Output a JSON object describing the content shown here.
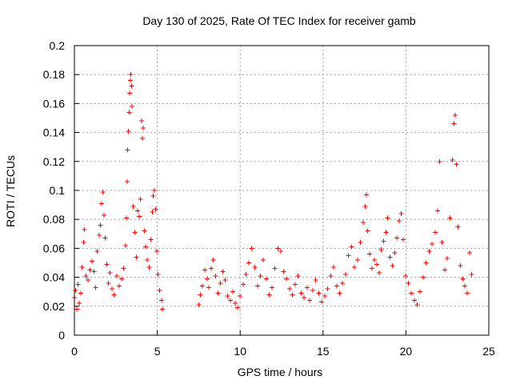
{
  "chart_data": {
    "type": "scatter",
    "title": "Day 130 of 2025, Rate Of TEC Index for receiver gamb",
    "xlabel": "GPS time / hours",
    "ylabel": "ROTI / TECUs",
    "xlim": [
      0,
      25
    ],
    "ylim": [
      0,
      0.2
    ],
    "x_ticks": [
      0,
      5,
      10,
      15,
      20,
      25
    ],
    "y_ticks": [
      0,
      0.02,
      0.04,
      0.06,
      0.08,
      0.1,
      0.12,
      0.14,
      0.16,
      0.18,
      0.2
    ],
    "grid": true,
    "marker": "plus",
    "color": "#ff0000",
    "series": [
      {
        "values": [
          [
            0.0,
            0.026
          ],
          [
            0.08,
            0.031
          ],
          [
            0.15,
            0.018
          ],
          [
            0.22,
            0.035
          ],
          [
            0.3,
            0.022
          ],
          [
            0.38,
            0.029
          ],
          [
            0.45,
            0.047
          ],
          [
            0.55,
            0.064
          ],
          [
            0.6,
            0.073
          ],
          [
            0.7,
            0.041
          ],
          [
            0.82,
            0.038
          ],
          [
            0.95,
            0.045
          ],
          [
            1.05,
            0.051
          ],
          [
            1.18,
            0.044
          ],
          [
            1.28,
            0.033
          ],
          [
            1.38,
            0.058
          ],
          [
            1.5,
            0.069
          ],
          [
            1.58,
            0.076
          ],
          [
            1.65,
            0.091
          ],
          [
            1.72,
            0.099
          ],
          [
            1.78,
            0.083
          ],
          [
            1.85,
            0.067
          ],
          [
            1.95,
            0.049
          ],
          [
            2.05,
            0.036
          ],
          [
            2.15,
            0.043
          ],
          [
            2.28,
            0.032
          ],
          [
            2.4,
            0.028
          ],
          [
            2.55,
            0.041
          ],
          [
            2.7,
            0.034
          ],
          [
            2.85,
            0.039
          ],
          [
            2.98,
            0.046
          ],
          [
            3.08,
            0.062
          ],
          [
            3.14,
            0.081
          ],
          [
            3.18,
            0.106
          ],
          [
            3.22,
            0.128
          ],
          [
            3.26,
            0.141
          ],
          [
            3.3,
            0.154
          ],
          [
            3.34,
            0.167
          ],
          [
            3.37,
            0.176
          ],
          [
            3.4,
            0.18
          ],
          [
            3.44,
            0.172
          ],
          [
            3.48,
            0.158
          ],
          [
            3.55,
            0.089
          ],
          [
            3.65,
            0.071
          ],
          [
            3.75,
            0.054
          ],
          [
            3.82,
            0.086
          ],
          [
            3.9,
            0.082
          ],
          [
            3.98,
            0.094
          ],
          [
            4.05,
            0.148
          ],
          [
            4.1,
            0.136
          ],
          [
            4.15,
            0.143
          ],
          [
            4.22,
            0.072
          ],
          [
            4.3,
            0.061
          ],
          [
            4.4,
            0.052
          ],
          [
            4.52,
            0.047
          ],
          [
            4.62,
            0.066
          ],
          [
            4.7,
            0.085
          ],
          [
            4.76,
            0.096
          ],
          [
            4.82,
            0.1
          ],
          [
            4.9,
            0.087
          ],
          [
            4.98,
            0.058
          ],
          [
            5.05,
            0.042
          ],
          [
            5.15,
            0.031
          ],
          [
            5.25,
            0.024
          ],
          [
            5.32,
            0.018
          ],
          [
            7.5,
            0.021
          ],
          [
            7.6,
            0.028
          ],
          [
            7.72,
            0.034
          ],
          [
            7.86,
            0.045
          ],
          [
            8.0,
            0.039
          ],
          [
            8.12,
            0.033
          ],
          [
            8.25,
            0.046
          ],
          [
            8.38,
            0.052
          ],
          [
            8.52,
            0.041
          ],
          [
            8.66,
            0.029
          ],
          [
            8.8,
            0.036
          ],
          [
            8.95,
            0.044
          ],
          [
            9.1,
            0.038
          ],
          [
            9.25,
            0.027
          ],
          [
            9.4,
            0.024
          ],
          [
            9.55,
            0.03
          ],
          [
            9.7,
            0.022
          ],
          [
            9.85,
            0.019
          ],
          [
            10.0,
            0.027
          ],
          [
            10.18,
            0.035
          ],
          [
            10.35,
            0.042
          ],
          [
            10.52,
            0.05
          ],
          [
            10.7,
            0.06
          ],
          [
            10.88,
            0.047
          ],
          [
            11.05,
            0.034
          ],
          [
            11.22,
            0.041
          ],
          [
            11.4,
            0.052
          ],
          [
            11.58,
            0.039
          ],
          [
            11.75,
            0.028
          ],
          [
            11.92,
            0.033
          ],
          [
            12.1,
            0.046
          ],
          [
            12.28,
            0.06
          ],
          [
            12.45,
            0.058
          ],
          [
            12.62,
            0.044
          ],
          [
            12.8,
            0.039
          ],
          [
            12.98,
            0.032
          ],
          [
            13.15,
            0.028
          ],
          [
            13.32,
            0.035
          ],
          [
            13.5,
            0.041
          ],
          [
            13.68,
            0.029
          ],
          [
            13.86,
            0.026
          ],
          [
            14.04,
            0.033
          ],
          [
            14.2,
            0.024
          ],
          [
            14.38,
            0.031
          ],
          [
            14.56,
            0.038
          ],
          [
            14.74,
            0.029
          ],
          [
            14.92,
            0.023
          ],
          [
            15.1,
            0.027
          ],
          [
            15.28,
            0.032
          ],
          [
            15.46,
            0.041
          ],
          [
            15.64,
            0.047
          ],
          [
            15.82,
            0.034
          ],
          [
            16.0,
            0.029
          ],
          [
            16.18,
            0.036
          ],
          [
            16.36,
            0.042
          ],
          [
            16.54,
            0.055
          ],
          [
            16.72,
            0.061
          ],
          [
            16.9,
            0.047
          ],
          [
            17.08,
            0.052
          ],
          [
            17.26,
            0.064
          ],
          [
            17.42,
            0.078
          ],
          [
            17.55,
            0.089
          ],
          [
            17.62,
            0.097
          ],
          [
            17.7,
            0.072
          ],
          [
            17.82,
            0.056
          ],
          [
            17.96,
            0.046
          ],
          [
            18.1,
            0.052
          ],
          [
            18.24,
            0.049
          ],
          [
            18.38,
            0.043
          ],
          [
            18.52,
            0.059
          ],
          [
            18.66,
            0.065
          ],
          [
            18.8,
            0.071
          ],
          [
            18.9,
            0.081
          ],
          [
            19.04,
            0.054
          ],
          [
            19.18,
            0.048
          ],
          [
            19.32,
            0.057
          ],
          [
            19.46,
            0.067
          ],
          [
            19.6,
            0.079
          ],
          [
            19.72,
            0.084
          ],
          [
            19.84,
            0.066
          ],
          [
            19.98,
            0.041
          ],
          [
            20.15,
            0.036
          ],
          [
            20.32,
            0.029
          ],
          [
            20.5,
            0.024
          ],
          [
            20.68,
            0.021
          ],
          [
            20.86,
            0.03
          ],
          [
            21.04,
            0.04
          ],
          [
            21.22,
            0.05
          ],
          [
            21.4,
            0.058
          ],
          [
            21.58,
            0.063
          ],
          [
            21.76,
            0.071
          ],
          [
            21.9,
            0.086
          ],
          [
            22.02,
            0.12
          ],
          [
            22.18,
            0.064
          ],
          [
            22.34,
            0.045
          ],
          [
            22.5,
            0.053
          ],
          [
            22.66,
            0.081
          ],
          [
            22.8,
            0.121
          ],
          [
            22.9,
            0.146
          ],
          [
            22.97,
            0.152
          ],
          [
            23.05,
            0.118
          ],
          [
            23.15,
            0.075
          ],
          [
            23.28,
            0.048
          ],
          [
            23.42,
            0.039
          ],
          [
            23.56,
            0.034
          ],
          [
            23.7,
            0.029
          ],
          [
            23.84,
            0.057
          ],
          [
            23.96,
            0.042
          ]
        ]
      }
    ]
  }
}
